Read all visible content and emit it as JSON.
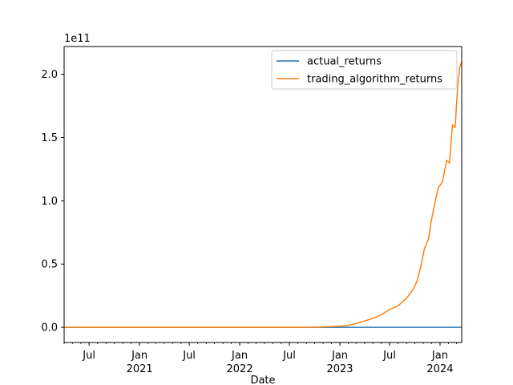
{
  "chart_data": {
    "type": "line",
    "xlabel": "Date",
    "ylabel": "",
    "offset_label": "1e11",
    "x_range": [
      "2020-04-01",
      "2024-03-20"
    ],
    "ylim": [
      -0.12,
      2.22
    ],
    "y_ticks": [
      0.0,
      0.5,
      1.0,
      1.5,
      2.0
    ],
    "y_tick_labels": [
      "0.0",
      "0.5",
      "1.0",
      "1.5",
      "2.0"
    ],
    "x_ticks": [
      {
        "date": "2020-07-01",
        "label": "Jul",
        "sub": ""
      },
      {
        "date": "2021-01-01",
        "label": "Jan",
        "sub": "2021"
      },
      {
        "date": "2021-07-01",
        "label": "Jul",
        "sub": ""
      },
      {
        "date": "2022-01-01",
        "label": "Jan",
        "sub": "2022"
      },
      {
        "date": "2022-07-01",
        "label": "Jul",
        "sub": ""
      },
      {
        "date": "2023-01-01",
        "label": "Jan",
        "sub": "2023"
      },
      {
        "date": "2023-07-01",
        "label": "Jul",
        "sub": ""
      },
      {
        "date": "2024-01-01",
        "label": "Jan",
        "sub": "2024"
      }
    ],
    "legend": {
      "placement": "upper-right"
    },
    "grid": false,
    "series": [
      {
        "name": "actual_returns",
        "color": "#1f77b4",
        "points": [
          [
            "2020-04-01",
            0.0
          ],
          [
            "2024-03-20",
            0.0
          ]
        ]
      },
      {
        "name": "trading_algorithm_returns",
        "color": "#ff7f0e",
        "points": [
          [
            "2020-04-01",
            0.0
          ],
          [
            "2022-09-01",
            0.0
          ],
          [
            "2022-11-01",
            0.003
          ],
          [
            "2023-01-01",
            0.008
          ],
          [
            "2023-02-01",
            0.015
          ],
          [
            "2023-03-01",
            0.03
          ],
          [
            "2023-04-01",
            0.05
          ],
          [
            "2023-05-01",
            0.07
          ],
          [
            "2023-06-01",
            0.1
          ],
          [
            "2023-07-01",
            0.14
          ],
          [
            "2023-08-01",
            0.17
          ],
          [
            "2023-09-01",
            0.23
          ],
          [
            "2023-09-25",
            0.3
          ],
          [
            "2023-10-10",
            0.37
          ],
          [
            "2023-10-25",
            0.5
          ],
          [
            "2023-11-05",
            0.62
          ],
          [
            "2023-11-20",
            0.7
          ],
          [
            "2023-12-01",
            0.85
          ],
          [
            "2023-12-15",
            1.0
          ],
          [
            "2023-12-25",
            1.1
          ],
          [
            "2024-01-10",
            1.15
          ],
          [
            "2024-01-25",
            1.32
          ],
          [
            "2024-02-05",
            1.3
          ],
          [
            "2024-02-15",
            1.6
          ],
          [
            "2024-02-25",
            1.58
          ],
          [
            "2024-03-05",
            1.9
          ],
          [
            "2024-03-12",
            2.05
          ],
          [
            "2024-03-20",
            2.1
          ]
        ]
      }
    ]
  }
}
